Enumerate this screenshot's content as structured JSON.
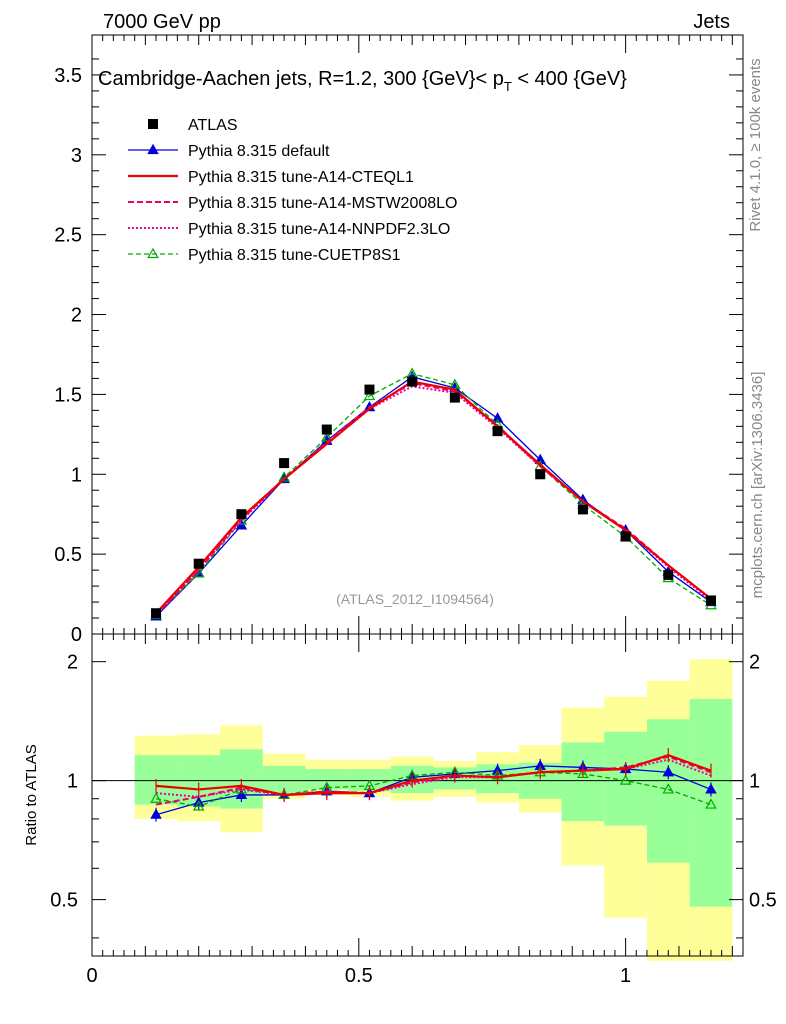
{
  "header": {
    "left": "7000 GeV pp",
    "right": "Jets"
  },
  "side_labels": {
    "rivet": "Rivet 4.1.0, ≥ 100k events",
    "mcplots": "mcplots.cern.ch [arXiv:1306.3436]"
  },
  "colors": {
    "atlas": "#000000",
    "default": "#0000dd",
    "cteql1": "#ee0000",
    "mstw": "#ee0066",
    "nnpdf": "#ee00aa",
    "cuetp8s1": "#00aa00",
    "band_yellow": "#ffff99",
    "band_green": "#99ff99"
  },
  "chart_data": [
    {
      "type": "line",
      "panel": "main",
      "title_prefix": "Cambridge-Aachen jets, R=1.2,  300 {GeV}< p",
      "title_sub": "T",
      "title_suffix": " < 400 {GeV}",
      "watermark": "(ATLAS_2012_I1094564)",
      "xlim": [
        0,
        1.22
      ],
      "ylim": [
        0,
        3.75
      ],
      "yticks": [
        0,
        0.5,
        1,
        1.5,
        2,
        2.5,
        3,
        3.5
      ],
      "ytick_labels": [
        "0",
        "0.5",
        "1",
        "1.5",
        "2",
        "2.5",
        "3",
        "3.5"
      ],
      "x": [
        0.12,
        0.2,
        0.28,
        0.36,
        0.44,
        0.52,
        0.6,
        0.68,
        0.76,
        0.84,
        0.92,
        1.0,
        1.08,
        1.16
      ],
      "series": [
        {
          "key": "atlas",
          "name": "ATLAS",
          "values": [
            0.13,
            0.44,
            0.75,
            1.07,
            1.28,
            1.53,
            1.58,
            1.48,
            1.27,
            1.0,
            0.78,
            0.61,
            0.37,
            0.21
          ]
        },
        {
          "key": "default",
          "name": "Pythia 8.315 default",
          "values": [
            0.11,
            0.38,
            0.68,
            0.97,
            1.21,
            1.42,
            1.61,
            1.54,
            1.35,
            1.09,
            0.84,
            0.65,
            0.39,
            0.2
          ]
        },
        {
          "key": "cteql1",
          "name": "Pythia 8.315 tune-A14-CTEQL1",
          "values": [
            0.13,
            0.42,
            0.73,
            0.97,
            1.19,
            1.41,
            1.58,
            1.53,
            1.3,
            1.06,
            0.83,
            0.65,
            0.43,
            0.22
          ]
        },
        {
          "key": "mstw",
          "name": "Pythia 8.315 tune-A14-MSTW2008LO",
          "values": [
            0.12,
            0.4,
            0.72,
            0.97,
            1.2,
            1.42,
            1.57,
            1.52,
            1.3,
            1.05,
            0.83,
            0.66,
            0.43,
            0.22
          ]
        },
        {
          "key": "nnpdf",
          "name": "Pythia 8.315 tune-A14-NNPDF2.3LO",
          "values": [
            0.12,
            0.4,
            0.71,
            0.97,
            1.19,
            1.41,
            1.55,
            1.51,
            1.29,
            1.05,
            0.83,
            0.65,
            0.42,
            0.21
          ]
        },
        {
          "key": "cuetp8s1",
          "name": "Pythia 8.315 tune-CUETP8S1",
          "values": [
            0.12,
            0.38,
            0.71,
            0.98,
            1.23,
            1.49,
            1.63,
            1.56,
            1.31,
            1.05,
            0.81,
            0.61,
            0.35,
            0.18
          ]
        }
      ]
    },
    {
      "type": "line",
      "panel": "ratio",
      "ylabel": "Ratio to ATLAS",
      "xlim": [
        0,
        1.22
      ],
      "ylim": [
        0.36,
        2.35
      ],
      "log_y": true,
      "yticks": [
        0.5,
        1,
        2
      ],
      "ytick_labels": [
        "0.5",
        "1",
        "2"
      ],
      "xticks": [
        0,
        0.5,
        1
      ],
      "xtick_labels": [
        "0",
        "0.5",
        "1"
      ],
      "x": [
        0.12,
        0.2,
        0.28,
        0.36,
        0.44,
        0.52,
        0.6,
        0.68,
        0.76,
        0.84,
        0.92,
        1.0,
        1.08,
        1.16
      ],
      "bin_edges": [
        0.08,
        0.16,
        0.24,
        0.32,
        0.4,
        0.48,
        0.56,
        0.64,
        0.72,
        0.8,
        0.88,
        0.96,
        1.04,
        1.12,
        1.2
      ],
      "band_yellow": [
        [
          0.8,
          1.3
        ],
        [
          0.79,
          1.31
        ],
        [
          0.74,
          1.38
        ],
        [
          0.9,
          1.17
        ],
        [
          0.92,
          1.13
        ],
        [
          0.91,
          1.13
        ],
        [
          0.89,
          1.15
        ],
        [
          0.91,
          1.12
        ],
        [
          0.88,
          1.18
        ],
        [
          0.83,
          1.23
        ],
        [
          0.61,
          1.53
        ],
        [
          0.45,
          1.63
        ],
        [
          0.35,
          1.79
        ],
        [
          0.35,
          2.03
        ]
      ],
      "band_green": [
        [
          0.87,
          1.16
        ],
        [
          0.86,
          1.16
        ],
        [
          0.85,
          1.2
        ],
        [
          0.93,
          1.09
        ],
        [
          0.95,
          1.07
        ],
        [
          0.94,
          1.07
        ],
        [
          0.93,
          1.09
        ],
        [
          0.95,
          1.08
        ],
        [
          0.93,
          1.1
        ],
        [
          0.9,
          1.11
        ],
        [
          0.79,
          1.25
        ],
        [
          0.77,
          1.33
        ],
        [
          0.62,
          1.43
        ],
        [
          0.48,
          1.61
        ]
      ],
      "series": [
        {
          "key": "default",
          "name": "Pythia 8.315 default",
          "values": [
            0.82,
            0.88,
            0.92,
            0.92,
            0.94,
            0.93,
            1.02,
            1.04,
            1.06,
            1.09,
            1.08,
            1.07,
            1.05,
            0.95
          ]
        },
        {
          "key": "cteql1",
          "name": "Pythia 8.315 tune-A14-CTEQL1",
          "values": [
            0.97,
            0.95,
            0.97,
            0.92,
            0.93,
            0.93,
            1.0,
            1.03,
            1.02,
            1.05,
            1.06,
            1.07,
            1.16,
            1.06
          ]
        },
        {
          "key": "mstw",
          "name": "Pythia 8.315 tune-A14-MSTW2008LO",
          "values": [
            0.87,
            0.91,
            0.96,
            0.92,
            0.94,
            0.93,
            0.99,
            1.03,
            1.02,
            1.05,
            1.06,
            1.08,
            1.15,
            1.05
          ]
        },
        {
          "key": "nnpdf",
          "name": "Pythia 8.315 tune-A14-NNPDF2.3LO",
          "values": [
            0.93,
            0.91,
            0.95,
            0.92,
            0.93,
            0.93,
            0.98,
            1.02,
            1.02,
            1.05,
            1.06,
            1.07,
            1.13,
            1.03
          ]
        },
        {
          "key": "cuetp8s1",
          "name": "Pythia 8.315 tune-CUETP8S1",
          "values": [
            0.9,
            0.86,
            0.95,
            0.92,
            0.96,
            0.97,
            1.03,
            1.05,
            1.03,
            1.05,
            1.04,
            1.0,
            0.95,
            0.87
          ]
        }
      ]
    }
  ]
}
